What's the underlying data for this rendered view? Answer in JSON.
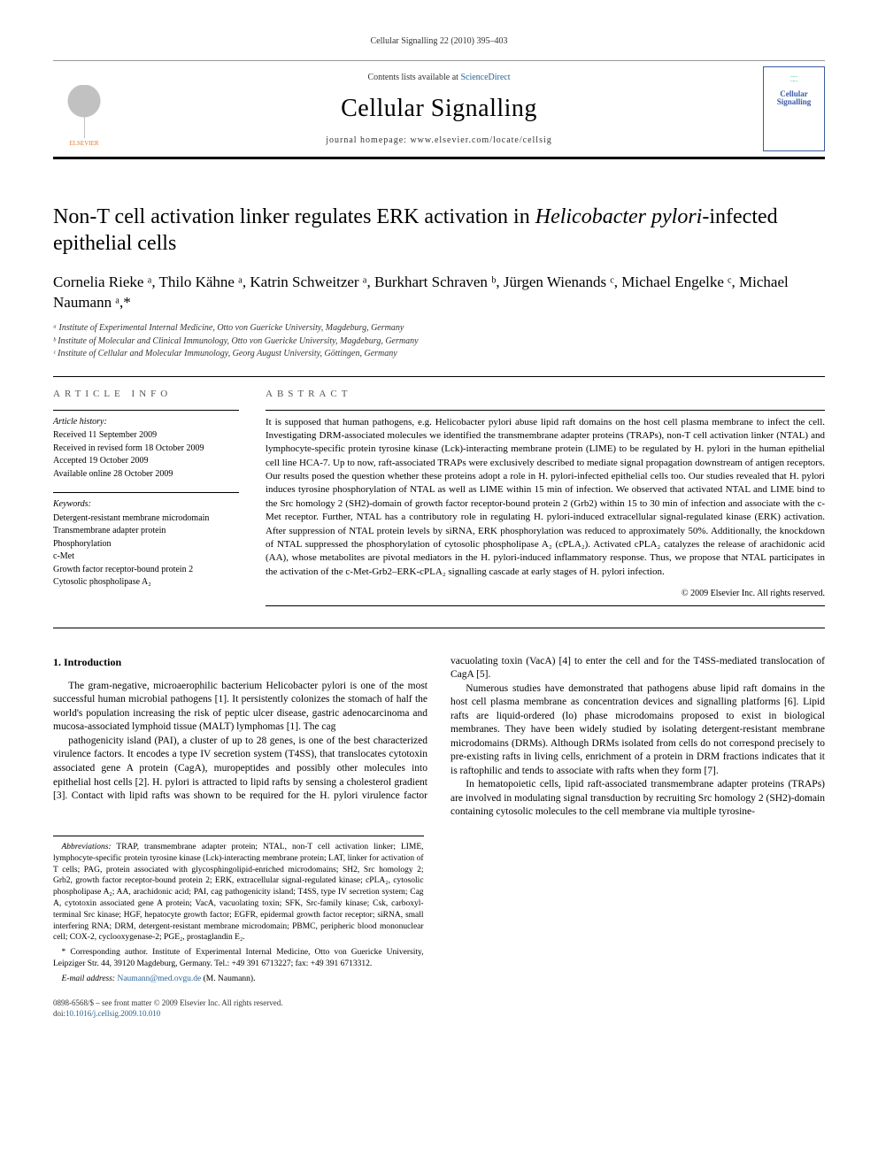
{
  "running_head": "Cellular Signalling 22 (2010) 395–403",
  "masthead": {
    "elsevier": "ELSEVIER",
    "contents_prefix": "Contents lists available at ",
    "contents_link": "ScienceDirect",
    "journal": "Cellular Signalling",
    "homepage_prefix": "journal homepage: ",
    "homepage_url": "www.elsevier.com/locate/cellsig",
    "cover_label": "Cellular Signalling"
  },
  "title_a": "Non-T cell activation linker regulates ERK activation in ",
  "title_b": "Helicobacter pylori",
  "title_c": "-infected epithelial cells",
  "authors_html": "Cornelia Rieke ᵃ, Thilo Kähne ᵃ, Katrin Schweitzer ᵃ, Burkhart Schraven ᵇ, Jürgen Wienands ᶜ, Michael Engelke ᶜ, Michael Naumann ᵃ,*",
  "affiliations": {
    "a": "ᵃ Institute of Experimental Internal Medicine, Otto von Guericke University, Magdeburg, Germany",
    "b": "ᵇ Institute of Molecular and Clinical Immunology, Otto von Guericke University, Magdeburg, Germany",
    "c": "ᶜ Institute of Cellular and Molecular Immunology, Georg August University, Göttingen, Germany"
  },
  "article_info": {
    "heading": "ARTICLE INFO",
    "history_label": "Article history:",
    "received": "Received 11 September 2009",
    "revised": "Received in revised form 18 October 2009",
    "accepted": "Accepted 19 October 2009",
    "online": "Available online 28 October 2009",
    "keywords_label": "Keywords:",
    "keywords": [
      "Detergent-resistant membrane microdomain",
      "Transmembrane adapter protein",
      "Phosphorylation",
      "c-Met",
      "Growth factor receptor-bound protein 2",
      "Cytosolic phospholipase A₂"
    ]
  },
  "abstract": {
    "heading": "ABSTRACT",
    "text": "It is supposed that human pathogens, e.g. Helicobacter pylori abuse lipid raft domains on the host cell plasma membrane to infect the cell. Investigating DRM-associated molecules we identified the transmembrane adapter proteins (TRAPs), non-T cell activation linker (NTAL) and lymphocyte-specific protein tyrosine kinase (Lck)-interacting membrane protein (LIME) to be regulated by H. pylori in the human epithelial cell line HCA-7. Up to now, raft-associated TRAPs were exclusively described to mediate signal propagation downstream of antigen receptors. Our results posed the question whether these proteins adopt a role in H. pylori-infected epithelial cells too. Our studies revealed that H. pylori induces tyrosine phosphorylation of NTAL as well as LIME within 15 min of infection. We observed that activated NTAL and LIME bind to the Src homology 2 (SH2)-domain of growth factor receptor-bound protein 2 (Grb2) within 15 to 30 min of infection and associate with the c-Met receptor. Further, NTAL has a contributory role in regulating H. pylori-induced extracellular signal-regulated kinase (ERK) activation. After suppression of NTAL protein levels by siRNA, ERK phosphorylation was reduced to approximately 50%. Additionally, the knockdown of NTAL suppressed the phosphorylation of cytosolic phospholipase A₂ (cPLA₂). Activated cPLA₂ catalyzes the release of arachidonic acid (AA), whose metabolites are pivotal mediators in the H. pylori-induced inflammatory response. Thus, we propose that NTAL participates in the activation of the c-Met-Grb2–ERK-cPLA₂ signalling cascade at early stages of H. pylori infection.",
    "copyright": "© 2009 Elsevier Inc. All rights reserved."
  },
  "intro": {
    "heading": "1. Introduction",
    "p1": "The gram-negative, microaerophilic bacterium Helicobacter pylori is one of the most successful human microbial pathogens [1]. It persistently colonizes the stomach of half the world's population increasing the risk of peptic ulcer disease, gastric adenocarcinoma and mucosa-associated lymphoid tissue (MALT) lymphomas [1]. The cag",
    "p2": "pathogenicity island (PAI), a cluster of up to 28 genes, is one of the best characterized virulence factors. It encodes a type IV secretion system (T4SS), that translocates cytotoxin associated gene A protein (CagA), muropeptides and possibly other molecules into epithelial host cells [2]. H. pylori is attracted to lipid rafts by sensing a cholesterol gradient [3]. Contact with lipid rafts was shown to be required for the H. pylori virulence factor vacuolating toxin (VacA) [4] to enter the cell and for the T4SS-mediated translocation of CagA [5].",
    "p3": "Numerous studies have demonstrated that pathogens abuse lipid raft domains in the host cell plasma membrane as concentration devices and signalling platforms [6]. Lipid rafts are liquid-ordered (lo) phase microdomains proposed to exist in biological membranes. They have been widely studied by isolating detergent-resistant membrane microdomains (DRMs). Although DRMs isolated from cells do not correspond precisely to pre-existing rafts in living cells, enrichment of a protein in DRM fractions indicates that it is raftophilic and tends to associate with rafts when they form [7].",
    "p4": "In hematopoietic cells, lipid raft-associated transmembrane adapter proteins (TRAPs) are involved in modulating signal transduction by recruiting Src homology 2 (SH2)-domain containing cytosolic molecules to the cell membrane via multiple tyrosine-"
  },
  "footnotes": {
    "abbrev_label": "Abbreviations:",
    "abbrev": " TRAP, transmembrane adapter protein; NTAL, non-T cell activation linker; LIME, lymphocyte-specific protein tyrosine kinase (Lck)-interacting membrane protein; LAT, linker for activation of T cells; PAG, protein associated with glycosphingolipid-enriched microdomains; SH2, Src homology 2; Grb2, growth factor receptor-bound protein 2; ERK, extracellular signal-regulated kinase; cPLA₂, cytosolic phospholipase A₂; AA, arachidonic acid; PAI, cag pathogenicity island; T4SS, type IV secretion system; Cag A, cytotoxin associated gene A protein; VacA, vacuolating toxin; SFK, Src-family kinase; Csk, carboxyl-terminal Src kinase; HGF, hepatocyte growth factor; EGFR, epidermal growth factor receptor; siRNA, small interfering RNA; DRM, detergent-resistant membrane microdomain; PBMC, peripheric blood mononuclear cell; COX-2, cyclooxygenase-2; PGE₂, prostaglandin E₂.",
    "corr": "* Corresponding author. Institute of Experimental Internal Medicine, Otto von Guericke University, Leipziger Str. 44, 39120 Magdeburg, Germany. Tel.: +49 391 6713227; fax: +49 391 6713312.",
    "email_label": "E-mail address:",
    "email": "Naumann@med.ovgu.de",
    "email_suffix": " (M. Naumann)."
  },
  "footer": {
    "issn": "0898-6568/$ – see front matter © 2009 Elsevier Inc. All rights reserved.",
    "doi_label": "doi:",
    "doi": "10.1016/j.cellsig.2009.10.010"
  }
}
